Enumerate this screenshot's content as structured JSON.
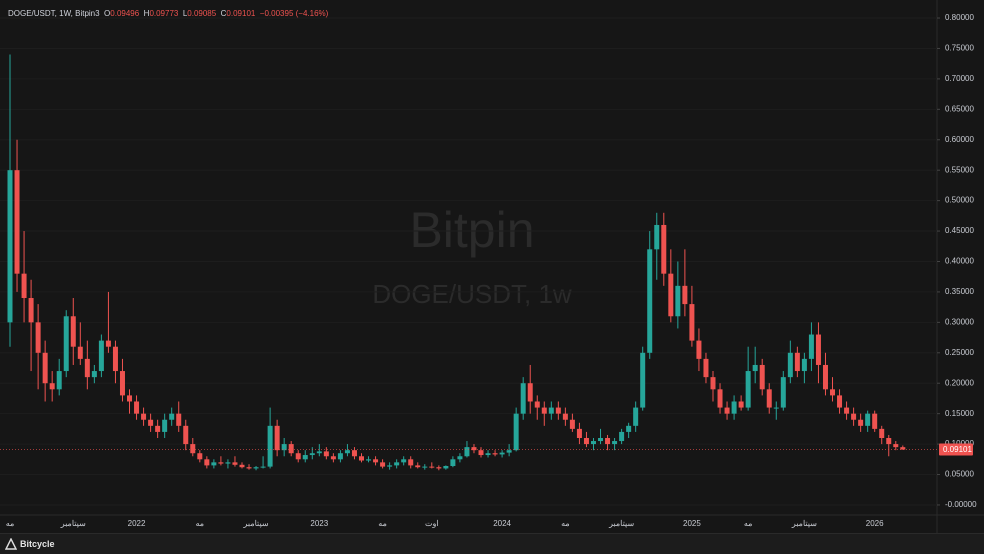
{
  "chart_data": {
    "type": "candlestick",
    "title": "DOGE/USDT, 1W, Bitpin3",
    "ohlc_letters": [
      "O",
      "H",
      "L",
      "C"
    ],
    "change_label": "−0.00395 (−4.16%)",
    "watermark": [
      "Bitpin",
      "DOGE/USDT, 1w"
    ],
    "footer": "Bitcycle",
    "up_color": "#26a69a",
    "down_color": "#ef5350",
    "grid": true,
    "ylim": [
      -0.0165,
      0.8214
    ],
    "yticks": [
      {
        "value": 0.8,
        "label": "0.80000"
      },
      {
        "value": 0.75,
        "label": "0.75000"
      },
      {
        "value": 0.7,
        "label": "0.70000"
      },
      {
        "value": 0.65,
        "label": "0.65000"
      },
      {
        "value": 0.6,
        "label": "0.60000"
      },
      {
        "value": 0.55,
        "label": "0.55000"
      },
      {
        "value": 0.5,
        "label": "0.50000"
      },
      {
        "value": 0.45,
        "label": "0.45000"
      },
      {
        "value": 0.4,
        "label": "0.40000"
      },
      {
        "value": 0.35,
        "label": "0.35000"
      },
      {
        "value": 0.3,
        "label": "0.30000"
      },
      {
        "value": 0.25,
        "label": "0.25000"
      },
      {
        "value": 0.2,
        "label": "0.20000"
      },
      {
        "value": 0.15,
        "label": "0.15000"
      },
      {
        "value": 0.1,
        "label": "0.10000"
      },
      {
        "value": 0.05,
        "label": "0.05000"
      },
      {
        "value": 0,
        "label": "-0.00000"
      }
    ],
    "categories": [
      "مه",
      null,
      null,
      null,
      null,
      null,
      null,
      null,
      null,
      "سپتامبر",
      null,
      null,
      null,
      null,
      null,
      null,
      null,
      null,
      "2022",
      null,
      null,
      null,
      null,
      null,
      null,
      null,
      null,
      "مه",
      null,
      null,
      null,
      null,
      null,
      null,
      null,
      "سپتامبر",
      null,
      null,
      null,
      null,
      null,
      null,
      null,
      null,
      "2023",
      null,
      null,
      null,
      null,
      null,
      null,
      null,
      null,
      "مه",
      null,
      null,
      null,
      null,
      null,
      null,
      "اوت",
      null,
      null,
      null,
      null,
      null,
      null,
      null,
      null,
      null,
      "2024",
      null,
      null,
      null,
      null,
      null,
      null,
      null,
      null,
      "مه",
      null,
      null,
      null,
      null,
      null,
      null,
      null,
      "سپتامبر",
      null,
      null,
      null,
      null,
      null,
      null,
      null,
      null,
      null,
      "2025",
      null,
      null,
      null,
      null,
      null,
      null,
      null,
      "مه",
      null,
      null,
      null,
      null,
      null,
      null,
      null,
      "سپتامبر",
      null,
      null,
      null,
      null,
      null,
      null,
      null,
      null,
      null,
      "2026",
      null,
      null,
      null,
      null
    ],
    "open": [
      0.3,
      0.55,
      0.38,
      0.34,
      0.3,
      0.25,
      0.2,
      0.19,
      0.22,
      0.31,
      0.26,
      0.24,
      0.21,
      0.22,
      0.27,
      0.26,
      0.22,
      0.18,
      0.17,
      0.15,
      0.14,
      0.13,
      0.12,
      0.14,
      0.15,
      0.13,
      0.1,
      0.085,
      0.075,
      0.065,
      0.07,
      0.068,
      0.07,
      0.066,
      0.062,
      0.06,
      0.062,
      0.063,
      0.13,
      0.09,
      0.1,
      0.085,
      0.075,
      0.082,
      0.085,
      0.088,
      0.08,
      0.075,
      0.085,
      0.09,
      0.08,
      0.073,
      0.075,
      0.07,
      0.063,
      0.065,
      0.07,
      0.075,
      0.065,
      0.062,
      0.063,
      0.062,
      0.06,
      0.064,
      0.075,
      0.08,
      0.095,
      0.09,
      0.082,
      0.085,
      0.083,
      0.086,
      0.09,
      0.15,
      0.2,
      0.17,
      0.16,
      0.15,
      0.16,
      0.15,
      0.14,
      0.125,
      0.11,
      0.1,
      0.105,
      0.11,
      0.1,
      0.105,
      0.12,
      0.13,
      0.16,
      0.25,
      0.42,
      0.46,
      0.38,
      0.31,
      0.36,
      0.33,
      0.27,
      0.24,
      0.21,
      0.19,
      0.16,
      0.15,
      0.17,
      0.16,
      0.22,
      0.23,
      0.19,
      0.16,
      0.16,
      0.21,
      0.25,
      0.22,
      0.24,
      0.28,
      0.23,
      0.19,
      0.18,
      0.16,
      0.15,
      0.14,
      0.13,
      0.15,
      0.125,
      0.11,
      0.1,
      0.09496
    ],
    "high": [
      0.74,
      0.6,
      0.45,
      0.37,
      0.33,
      0.27,
      0.22,
      0.24,
      0.32,
      0.34,
      0.3,
      0.27,
      0.23,
      0.28,
      0.35,
      0.27,
      0.24,
      0.19,
      0.18,
      0.16,
      0.15,
      0.14,
      0.15,
      0.16,
      0.17,
      0.14,
      0.11,
      0.09,
      0.08,
      0.075,
      0.08,
      0.075,
      0.08,
      0.07,
      0.067,
      0.064,
      0.08,
      0.16,
      0.14,
      0.11,
      0.105,
      0.09,
      0.09,
      0.095,
      0.1,
      0.095,
      0.085,
      0.09,
      0.1,
      0.095,
      0.085,
      0.08,
      0.08,
      0.075,
      0.07,
      0.075,
      0.08,
      0.08,
      0.07,
      0.067,
      0.07,
      0.065,
      0.065,
      0.08,
      0.085,
      0.105,
      0.1,
      0.095,
      0.09,
      0.09,
      0.09,
      0.1,
      0.16,
      0.21,
      0.23,
      0.18,
      0.17,
      0.17,
      0.17,
      0.16,
      0.15,
      0.135,
      0.12,
      0.11,
      0.125,
      0.115,
      0.11,
      0.125,
      0.135,
      0.17,
      0.26,
      0.45,
      0.48,
      0.48,
      0.42,
      0.4,
      0.42,
      0.36,
      0.29,
      0.25,
      0.22,
      0.2,
      0.17,
      0.18,
      0.18,
      0.26,
      0.26,
      0.24,
      0.2,
      0.17,
      0.22,
      0.27,
      0.26,
      0.25,
      0.3,
      0.3,
      0.25,
      0.21,
      0.19,
      0.17,
      0.16,
      0.15,
      0.155,
      0.155,
      0.13,
      0.115,
      0.105,
      0.09773
    ],
    "low": [
      0.26,
      0.35,
      0.3,
      0.22,
      0.19,
      0.17,
      0.17,
      0.18,
      0.21,
      0.23,
      0.23,
      0.19,
      0.2,
      0.21,
      0.25,
      0.2,
      0.17,
      0.15,
      0.14,
      0.13,
      0.12,
      0.11,
      0.11,
      0.13,
      0.12,
      0.09,
      0.08,
      0.07,
      0.06,
      0.06,
      0.065,
      0.06,
      0.063,
      0.06,
      0.058,
      0.057,
      0.06,
      0.06,
      0.08,
      0.08,
      0.08,
      0.07,
      0.07,
      0.075,
      0.08,
      0.075,
      0.07,
      0.07,
      0.08,
      0.075,
      0.07,
      0.07,
      0.065,
      0.06,
      0.058,
      0.06,
      0.065,
      0.06,
      0.06,
      0.058,
      0.06,
      0.057,
      0.058,
      0.062,
      0.07,
      0.078,
      0.085,
      0.078,
      0.078,
      0.08,
      0.078,
      0.08,
      0.088,
      0.14,
      0.15,
      0.14,
      0.13,
      0.14,
      0.14,
      0.13,
      0.12,
      0.1,
      0.095,
      0.09,
      0.1,
      0.09,
      0.09,
      0.1,
      0.11,
      0.12,
      0.155,
      0.24,
      0.37,
      0.36,
      0.3,
      0.29,
      0.31,
      0.26,
      0.22,
      0.2,
      0.17,
      0.15,
      0.14,
      0.14,
      0.155,
      0.155,
      0.2,
      0.18,
      0.15,
      0.14,
      0.155,
      0.2,
      0.21,
      0.2,
      0.22,
      0.2,
      0.18,
      0.17,
      0.15,
      0.14,
      0.13,
      0.12,
      0.12,
      0.12,
      0.1,
      0.08,
      0.09,
      0.09085
    ],
    "close": [
      0.55,
      0.38,
      0.34,
      0.3,
      0.25,
      0.2,
      0.19,
      0.22,
      0.31,
      0.26,
      0.24,
      0.21,
      0.22,
      0.27,
      0.26,
      0.22,
      0.18,
      0.17,
      0.15,
      0.14,
      0.13,
      0.12,
      0.14,
      0.15,
      0.13,
      0.1,
      0.085,
      0.075,
      0.065,
      0.07,
      0.068,
      0.07,
      0.066,
      0.062,
      0.06,
      0.062,
      0.063,
      0.13,
      0.09,
      0.1,
      0.085,
      0.075,
      0.082,
      0.085,
      0.088,
      0.08,
      0.075,
      0.085,
      0.09,
      0.08,
      0.073,
      0.075,
      0.07,
      0.063,
      0.065,
      0.07,
      0.075,
      0.065,
      0.062,
      0.063,
      0.062,
      0.06,
      0.064,
      0.075,
      0.08,
      0.095,
      0.09,
      0.082,
      0.085,
      0.083,
      0.086,
      0.09,
      0.15,
      0.2,
      0.17,
      0.16,
      0.15,
      0.16,
      0.15,
      0.14,
      0.125,
      0.11,
      0.1,
      0.105,
      0.11,
      0.1,
      0.105,
      0.12,
      0.13,
      0.16,
      0.25,
      0.42,
      0.46,
      0.38,
      0.31,
      0.36,
      0.33,
      0.27,
      0.24,
      0.21,
      0.19,
      0.16,
      0.15,
      0.17,
      0.16,
      0.22,
      0.23,
      0.19,
      0.16,
      0.16,
      0.21,
      0.25,
      0.22,
      0.24,
      0.28,
      0.23,
      0.19,
      0.18,
      0.16,
      0.15,
      0.14,
      0.13,
      0.15,
      0.125,
      0.11,
      0.1,
      0.095,
      0.09101
    ]
  }
}
